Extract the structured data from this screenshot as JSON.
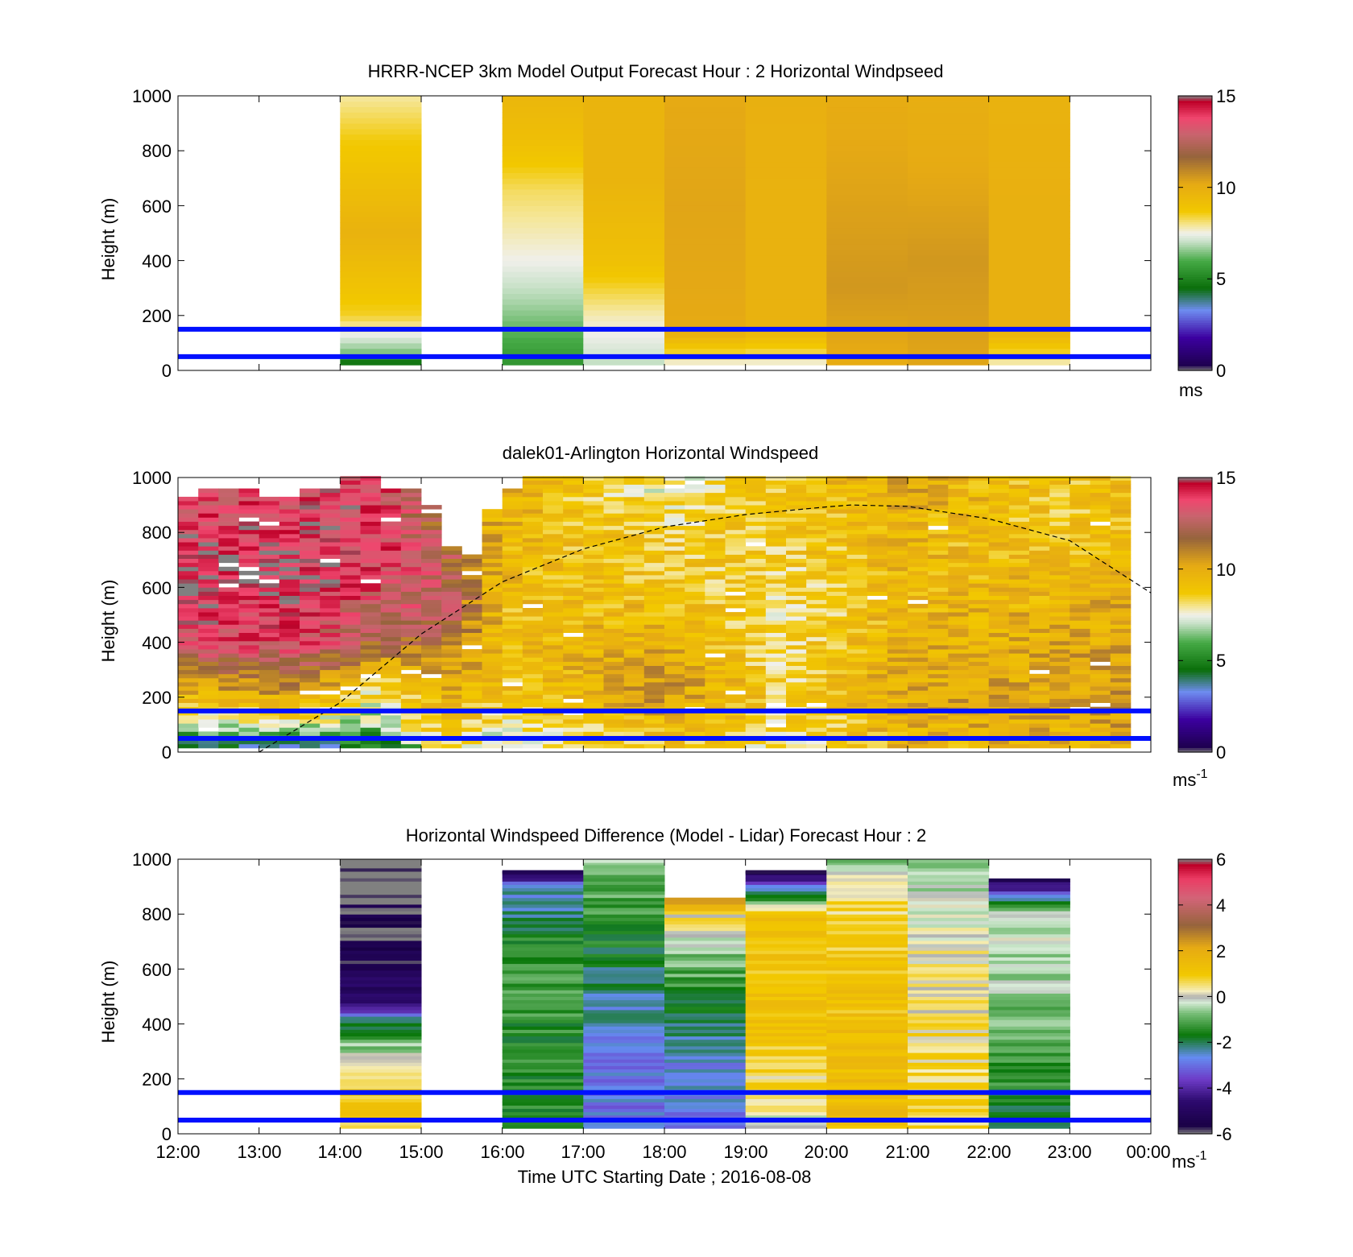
{
  "figure": {
    "xtick_labels": [
      "12:00",
      "13:00",
      "14:00",
      "15:00",
      "16:00",
      "17:00",
      "18:00",
      "19:00",
      "20:00",
      "21:00",
      "22:00",
      "23:00",
      "00:00"
    ],
    "xlabel": "Time UTC  Starting Date ; 2016-08-08"
  },
  "chart_data": [
    {
      "type": "heatmap",
      "title": "HRRR-NCEP 3km Model Output   Forecast Hour : 2 Horizontal Windpseed",
      "ylabel": "Height (m)",
      "ylim": [
        0,
        1000
      ],
      "yticks": [
        "0",
        "200",
        "400",
        "600",
        "800",
        "1000"
      ],
      "xlim_hours": [
        12,
        24
      ],
      "colorbar": {
        "clim": [
          0,
          15
        ],
        "ticks": [
          "0",
          "5",
          "10",
          "15"
        ],
        "unit": "ms"
      },
      "reference_lines_m": [
        50,
        150
      ],
      "columns": [
        {
          "start_hour": 14,
          "profile": [
            [
              25,
              4.5
            ],
            [
              70,
              6.5
            ],
            [
              200,
              8.5
            ],
            [
              500,
              9.8
            ],
            [
              850,
              8.6
            ],
            [
              1000,
              7.9
            ]
          ]
        },
        {
          "start_hour": 16,
          "profile": [
            [
              25,
              5.5
            ],
            [
              250,
              6.8
            ],
            [
              400,
              7.5
            ],
            [
              650,
              8.2
            ],
            [
              850,
              9.2
            ],
            [
              1000,
              9.6
            ]
          ]
        },
        {
          "start_hour": 17,
          "profile": [
            [
              25,
              7.0
            ],
            [
              200,
              7.8
            ],
            [
              400,
              9.1
            ],
            [
              700,
              9.7
            ],
            [
              1000,
              9.7
            ]
          ]
        },
        {
          "start_hour": 18,
          "profile": [
            [
              25,
              7.6
            ],
            [
              150,
              10.2
            ],
            [
              600,
              10.3
            ],
            [
              1000,
              10.2
            ]
          ]
        },
        {
          "start_hour": 19,
          "profile": [
            [
              25,
              7.6
            ],
            [
              150,
              9.8
            ],
            [
              600,
              9.8
            ],
            [
              1000,
              9.9
            ]
          ]
        },
        {
          "start_hour": 20,
          "profile": [
            [
              25,
              10.1
            ],
            [
              300,
              10.6
            ],
            [
              700,
              10.3
            ],
            [
              1000,
              10.1
            ]
          ]
        },
        {
          "start_hour": 21,
          "profile": [
            [
              25,
              10.3
            ],
            [
              400,
              10.6
            ],
            [
              800,
              10.1
            ],
            [
              1000,
              10.0
            ]
          ]
        },
        {
          "start_hour": 22,
          "profile": [
            [
              25,
              7.8
            ],
            [
              150,
              9.9
            ],
            [
              600,
              9.9
            ],
            [
              1000,
              9.8
            ]
          ]
        }
      ]
    },
    {
      "type": "heatmap",
      "title": "dalek01-Arlington  Horizontal Windspeed",
      "ylabel": "Height (m)",
      "ylim": [
        0,
        1000
      ],
      "yticks": [
        "0",
        "200",
        "400",
        "600",
        "800",
        "1000"
      ],
      "xlim_hours": [
        12,
        24
      ],
      "colorbar": {
        "clim": [
          0,
          15
        ],
        "ticks": [
          "0",
          "5",
          "10",
          "15"
        ],
        "unit": "ms",
        "unit_exponent": "-1"
      },
      "reference_lines_m": [
        50,
        150
      ],
      "boundary_layer_curve": {
        "x_hours": [
          13.0,
          14.0,
          15.0,
          16.0,
          17.0,
          18.0,
          19.0,
          20.0,
          20.3,
          21.0,
          22.0,
          23.0,
          24.0
        ],
        "height_m": [
          0,
          180,
          430,
          620,
          740,
          820,
          865,
          893,
          900,
          895,
          850,
          770,
          580
        ]
      },
      "columns_per_hour": 4,
      "column_tops_m": [
        930,
        950,
        950,
        950,
        930,
        930,
        950,
        950,
        1000,
        1000,
        950,
        960,
        900,
        750,
        720,
        880,
        950,
        1000,
        1000,
        1000,
        1000,
        1000,
        1000,
        1000,
        1000,
        1000,
        1000,
        1000,
        1000,
        1000,
        1000,
        1000,
        1000,
        1000,
        1000,
        1000,
        1000,
        1000,
        1000,
        1000,
        1000,
        1000,
        1000,
        1000,
        1000,
        1000,
        1000
      ],
      "profile_keys": [
        {
          "hour": 12,
          "profile": [
            [
              20,
              4.5
            ],
            [
              100,
              7.5
            ],
            [
              250,
              10.5
            ],
            [
              400,
              13.5
            ],
            [
              650,
              15.0
            ],
            [
              900,
              13.5
            ]
          ]
        },
        {
          "hour": 13.5,
          "profile": [
            [
              20,
              4.0
            ],
            [
              100,
              7.8
            ],
            [
              250,
              11.5
            ],
            [
              400,
              13.8
            ],
            [
              650,
              14.5
            ],
            [
              900,
              13.8
            ]
          ]
        },
        {
          "hour": 14.5,
          "profile": [
            [
              20,
              4.5
            ],
            [
              100,
              6.5
            ],
            [
              250,
              8.5
            ],
            [
              400,
              12.0
            ],
            [
              650,
              13.8
            ],
            [
              900,
              14.0
            ]
          ]
        },
        {
          "hour": 15.3,
          "profile": [
            [
              20,
              8.5
            ],
            [
              100,
              9.5
            ],
            [
              300,
              10.5
            ],
            [
              500,
              13.0
            ],
            [
              700,
              12.5
            ],
            [
              900,
              11.0
            ]
          ]
        },
        {
          "hour": 16,
          "profile": [
            [
              20,
              7.0
            ],
            [
              200,
              9.0
            ],
            [
              500,
              9.3
            ],
            [
              800,
              9.6
            ],
            [
              1000,
              10.0
            ]
          ]
        },
        {
          "hour": 18,
          "profile": [
            [
              20,
              9.0
            ],
            [
              200,
              10.6
            ],
            [
              500,
              9.5
            ],
            [
              800,
              8.5
            ],
            [
              1000,
              7.5
            ]
          ]
        },
        {
          "hour": 19.5,
          "profile": [
            [
              20,
              8.0
            ],
            [
              200,
              8.6
            ],
            [
              500,
              8.2
            ],
            [
              800,
              8.8
            ],
            [
              1000,
              9.0
            ]
          ]
        },
        {
          "hour": 21,
          "profile": [
            [
              20,
              9.6
            ],
            [
              200,
              10.2
            ],
            [
              500,
              9.6
            ],
            [
              800,
              9.6
            ],
            [
              1000,
              10.0
            ]
          ]
        },
        {
          "hour": 23,
          "profile": [
            [
              20,
              9.6
            ],
            [
              200,
              10.3
            ],
            [
              500,
              9.8
            ],
            [
              800,
              8.8
            ],
            [
              1000,
              9.0
            ]
          ]
        },
        {
          "hour": 24,
          "profile": [
            [
              20,
              10.6
            ],
            [
              200,
              10.8
            ],
            [
              500,
              10.2
            ],
            [
              800,
              9.5
            ],
            [
              1000,
              9.5
            ]
          ]
        }
      ]
    },
    {
      "type": "heatmap",
      "title": "Horizontal Windspeed Difference (Model - Lidar) Forecast Hour : 2",
      "ylabel": "Height (m)",
      "ylim": [
        0,
        1000
      ],
      "yticks": [
        "0",
        "200",
        "400",
        "600",
        "800",
        "1000"
      ],
      "xlim_hours": [
        12,
        24
      ],
      "colorbar": {
        "clim": [
          -6,
          6
        ],
        "ticks": [
          "-6",
          "-4",
          "-2",
          "0",
          "2",
          "4",
          "6"
        ],
        "unit": "ms",
        "unit_exponent": "-1"
      },
      "reference_lines_m": [
        50,
        150
      ],
      "columns": [
        {
          "start_hour": 14,
          "top_m": 1000,
          "profile": [
            [
              25,
              1.0
            ],
            [
              200,
              0.9
            ],
            [
              300,
              -0.3
            ],
            [
              350,
              -1.0
            ],
            [
              420,
              -2.5
            ],
            [
              470,
              -4.5
            ],
            [
              560,
              -5.0
            ],
            [
              700,
              -5.8
            ],
            [
              830,
              -5.7
            ],
            [
              880,
              -6.2
            ],
            [
              1000,
              -6.2
            ]
          ]
        },
        {
          "start_hour": 16,
          "top_m": 960,
          "profile": [
            [
              25,
              -1.3
            ],
            [
              300,
              -1.5
            ],
            [
              600,
              -1.2
            ],
            [
              800,
              -2.0
            ],
            [
              900,
              -2.7
            ],
            [
              960,
              -5.5
            ]
          ]
        },
        {
          "start_hour": 17,
          "top_m": 1000,
          "profile": [
            [
              25,
              -2.9
            ],
            [
              300,
              -2.7
            ],
            [
              500,
              -2.3
            ],
            [
              700,
              -1.7
            ],
            [
              850,
              -1.1
            ],
            [
              1000,
              -0.5
            ]
          ]
        },
        {
          "start_hour": 18,
          "top_m": 860,
          "profile": [
            [
              25,
              -2.9
            ],
            [
              300,
              -2.5
            ],
            [
              500,
              -1.6
            ],
            [
              650,
              -0.6
            ],
            [
              800,
              0.5
            ],
            [
              860,
              3.0
            ]
          ]
        },
        {
          "start_hour": 19,
          "top_m": 960,
          "profile": [
            [
              25,
              -0.2
            ],
            [
              150,
              0.5
            ],
            [
              400,
              1.2
            ],
            [
              800,
              1.2
            ],
            [
              960,
              -5.5
            ]
          ]
        },
        {
          "start_hour": 20,
          "top_m": 1000,
          "profile": [
            [
              25,
              1.3
            ],
            [
              300,
              1.3
            ],
            [
              650,
              1.1
            ],
            [
              850,
              0.5
            ],
            [
              1000,
              -0.5
            ]
          ]
        },
        {
          "start_hour": 21,
          "top_m": 1000,
          "profile": [
            [
              25,
              0.8
            ],
            [
              300,
              0.6
            ],
            [
              650,
              0.2
            ],
            [
              850,
              -0.3
            ],
            [
              1000,
              -0.8
            ]
          ]
        },
        {
          "start_hour": 22,
          "top_m": 930,
          "profile": [
            [
              25,
              -2.2
            ],
            [
              200,
              -1.3
            ],
            [
              500,
              -0.6
            ],
            [
              800,
              -0.1
            ],
            [
              930,
              -5.5
            ]
          ]
        }
      ]
    }
  ]
}
